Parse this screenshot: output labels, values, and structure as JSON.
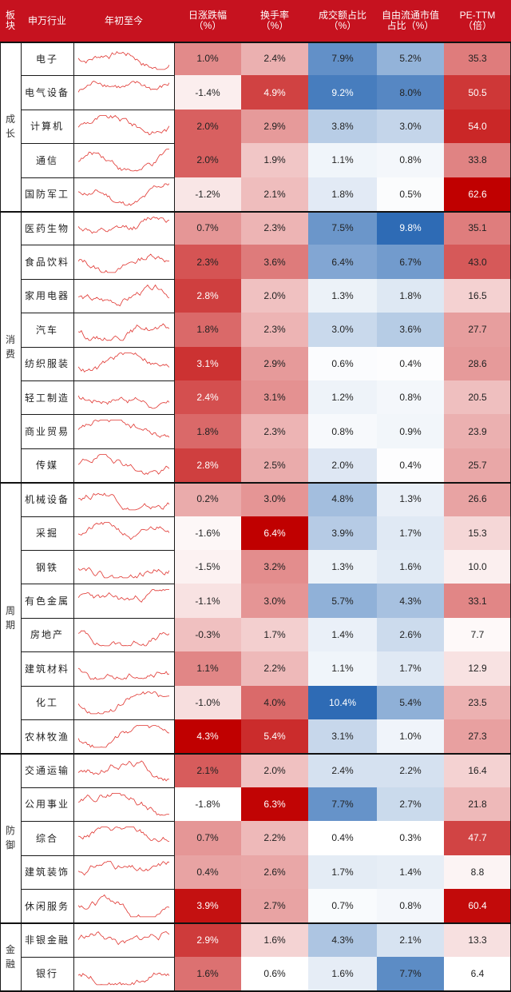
{
  "header": {
    "section": "板块",
    "industry": "申万行业",
    "ytd": "年初至今",
    "change": "日涨跌幅\n（%）",
    "turnover": "换手率\n（%）",
    "volume_share": "成交额占比\n（%）",
    "float_share": "自由流通市值\n占比（%）",
    "pe": "PE-TTM\n（倍）"
  },
  "sections": [
    {
      "name": "成长",
      "rows": 5
    },
    {
      "name": "消费",
      "rows": 8
    },
    {
      "name": "周期",
      "rows": 8
    },
    {
      "name": "防御",
      "rows": 5
    },
    {
      "name": "金融",
      "rows": 2
    }
  ],
  "rows": [
    {
      "industry": "电子",
      "change": "1.0%",
      "turnover": "2.4%",
      "volume_share": "7.9%",
      "float_share": "5.2%",
      "pe": "35.3"
    },
    {
      "industry": "电气设备",
      "change": "-1.4%",
      "turnover": "4.9%",
      "volume_share": "9.2%",
      "float_share": "8.0%",
      "pe": "50.5"
    },
    {
      "industry": "计算机",
      "change": "2.0%",
      "turnover": "2.9%",
      "volume_share": "3.8%",
      "float_share": "3.0%",
      "pe": "54.0"
    },
    {
      "industry": "通信",
      "change": "2.0%",
      "turnover": "1.9%",
      "volume_share": "1.1%",
      "float_share": "0.8%",
      "pe": "33.8"
    },
    {
      "industry": "国防军工",
      "change": "-1.2%",
      "turnover": "2.1%",
      "volume_share": "1.8%",
      "float_share": "0.5%",
      "pe": "62.6"
    },
    {
      "industry": "医药生物",
      "change": "0.7%",
      "turnover": "2.3%",
      "volume_share": "7.5%",
      "float_share": "9.8%",
      "pe": "35.1"
    },
    {
      "industry": "食品饮料",
      "change": "2.3%",
      "turnover": "3.6%",
      "volume_share": "6.4%",
      "float_share": "6.7%",
      "pe": "43.0"
    },
    {
      "industry": "家用电器",
      "change": "2.8%",
      "turnover": "2.0%",
      "volume_share": "1.3%",
      "float_share": "1.8%",
      "pe": "16.5"
    },
    {
      "industry": "汽车",
      "change": "1.8%",
      "turnover": "2.3%",
      "volume_share": "3.0%",
      "float_share": "3.6%",
      "pe": "27.7"
    },
    {
      "industry": "纺织服装",
      "change": "3.1%",
      "turnover": "2.9%",
      "volume_share": "0.6%",
      "float_share": "0.4%",
      "pe": "28.6"
    },
    {
      "industry": "轻工制造",
      "change": "2.4%",
      "turnover": "3.1%",
      "volume_share": "1.2%",
      "float_share": "0.8%",
      "pe": "20.5"
    },
    {
      "industry": "商业贸易",
      "change": "1.8%",
      "turnover": "2.3%",
      "volume_share": "0.8%",
      "float_share": "0.9%",
      "pe": "23.9"
    },
    {
      "industry": "传媒",
      "change": "2.8%",
      "turnover": "2.5%",
      "volume_share": "2.0%",
      "float_share": "0.4%",
      "pe": "25.7"
    },
    {
      "industry": "机械设备",
      "change": "0.2%",
      "turnover": "3.0%",
      "volume_share": "4.8%",
      "float_share": "1.3%",
      "pe": "26.6"
    },
    {
      "industry": "采掘",
      "change": "-1.6%",
      "turnover": "6.4%",
      "volume_share": "3.9%",
      "float_share": "1.7%",
      "pe": "15.3"
    },
    {
      "industry": "钢铁",
      "change": "-1.5%",
      "turnover": "3.2%",
      "volume_share": "1.3%",
      "float_share": "1.6%",
      "pe": "10.0"
    },
    {
      "industry": "有色金属",
      "change": "-1.1%",
      "turnover": "3.0%",
      "volume_share": "5.7%",
      "float_share": "4.3%",
      "pe": "33.1"
    },
    {
      "industry": "房地产",
      "change": "-0.3%",
      "turnover": "1.7%",
      "volume_share": "1.4%",
      "float_share": "2.6%",
      "pe": "7.7"
    },
    {
      "industry": "建筑材料",
      "change": "1.1%",
      "turnover": "2.2%",
      "volume_share": "1.1%",
      "float_share": "1.7%",
      "pe": "12.9"
    },
    {
      "industry": "化工",
      "change": "-1.0%",
      "turnover": "4.0%",
      "volume_share": "10.4%",
      "float_share": "5.4%",
      "pe": "23.5"
    },
    {
      "industry": "农林牧渔",
      "change": "4.3%",
      "turnover": "5.4%",
      "volume_share": "3.1%",
      "float_share": "1.0%",
      "pe": "27.3"
    },
    {
      "industry": "交通运输",
      "change": "2.1%",
      "turnover": "2.0%",
      "volume_share": "2.4%",
      "float_share": "2.2%",
      "pe": "16.4"
    },
    {
      "industry": "公用事业",
      "change": "-1.8%",
      "turnover": "6.3%",
      "volume_share": "7.7%",
      "float_share": "2.7%",
      "pe": "21.8"
    },
    {
      "industry": "综合",
      "change": "0.7%",
      "turnover": "2.2%",
      "volume_share": "0.4%",
      "float_share": "0.3%",
      "pe": "47.7"
    },
    {
      "industry": "建筑装饰",
      "change": "0.4%",
      "turnover": "2.6%",
      "volume_share": "1.7%",
      "float_share": "1.4%",
      "pe": "8.8"
    },
    {
      "industry": "休闲服务",
      "change": "3.9%",
      "turnover": "2.7%",
      "volume_share": "0.7%",
      "float_share": "0.8%",
      "pe": "60.4"
    },
    {
      "industry": "非银金融",
      "change": "2.9%",
      "turnover": "1.6%",
      "volume_share": "4.3%",
      "float_share": "2.1%",
      "pe": "13.3"
    },
    {
      "industry": "银行",
      "change": "1.6%",
      "turnover": "0.6%",
      "volume_share": "1.6%",
      "float_share": "7.7%",
      "pe": "6.4"
    }
  ],
  "chart_data": {
    "type": "table",
    "columns": [
      "板块",
      "申万行业",
      "年初至今",
      "日涨跌幅（%）",
      "换手率（%）",
      "成交额占比（%）",
      "自由流通市值占比（%）",
      "PE-TTM（倍）"
    ],
    "change_pct": [
      1.0,
      -1.4,
      2.0,
      2.0,
      -1.2,
      0.7,
      2.3,
      2.8,
      1.8,
      3.1,
      2.4,
      1.8,
      2.8,
      0.2,
      -1.6,
      -1.5,
      -1.1,
      -0.3,
      1.1,
      -1.0,
      4.3,
      2.1,
      -1.8,
      0.7,
      0.4,
      3.9,
      2.9,
      1.6
    ],
    "turnover_pct": [
      2.4,
      4.9,
      2.9,
      1.9,
      2.1,
      2.3,
      3.6,
      2.0,
      2.3,
      2.9,
      3.1,
      2.3,
      2.5,
      3.0,
      6.4,
      3.2,
      3.0,
      1.7,
      2.2,
      4.0,
      5.4,
      2.0,
      6.3,
      2.2,
      2.6,
      2.7,
      1.6,
      0.6
    ],
    "volume_share_pct": [
      7.9,
      9.2,
      3.8,
      1.1,
      1.8,
      7.5,
      6.4,
      1.3,
      3.0,
      0.6,
      1.2,
      0.8,
      2.0,
      4.8,
      3.9,
      1.3,
      5.7,
      1.4,
      1.1,
      10.4,
      3.1,
      2.4,
      7.7,
      0.4,
      1.7,
      0.7,
      4.3,
      1.6
    ],
    "float_share_pct": [
      5.2,
      8.0,
      3.0,
      0.8,
      0.5,
      9.8,
      6.7,
      1.8,
      3.6,
      0.4,
      0.8,
      0.9,
      0.4,
      1.3,
      1.7,
      1.6,
      4.3,
      2.6,
      1.7,
      5.4,
      1.0,
      2.2,
      2.7,
      0.3,
      1.4,
      0.8,
      2.1,
      7.7
    ],
    "pe_ttm": [
      35.3,
      50.5,
      54.0,
      33.8,
      62.6,
      35.1,
      43.0,
      16.5,
      27.7,
      28.6,
      20.5,
      23.9,
      25.7,
      26.6,
      15.3,
      10.0,
      33.1,
      7.7,
      12.9,
      23.5,
      27.3,
      16.4,
      21.8,
      47.7,
      8.8,
      60.4,
      13.3,
      6.4
    ],
    "color_scales": {
      "red_low": "#ffffff",
      "red_high": "#c00000",
      "blue_low": "#ffffff",
      "blue_high": "#2e6bb5",
      "header_bg": "#c6121f",
      "sparkline": "#e0342f"
    }
  }
}
